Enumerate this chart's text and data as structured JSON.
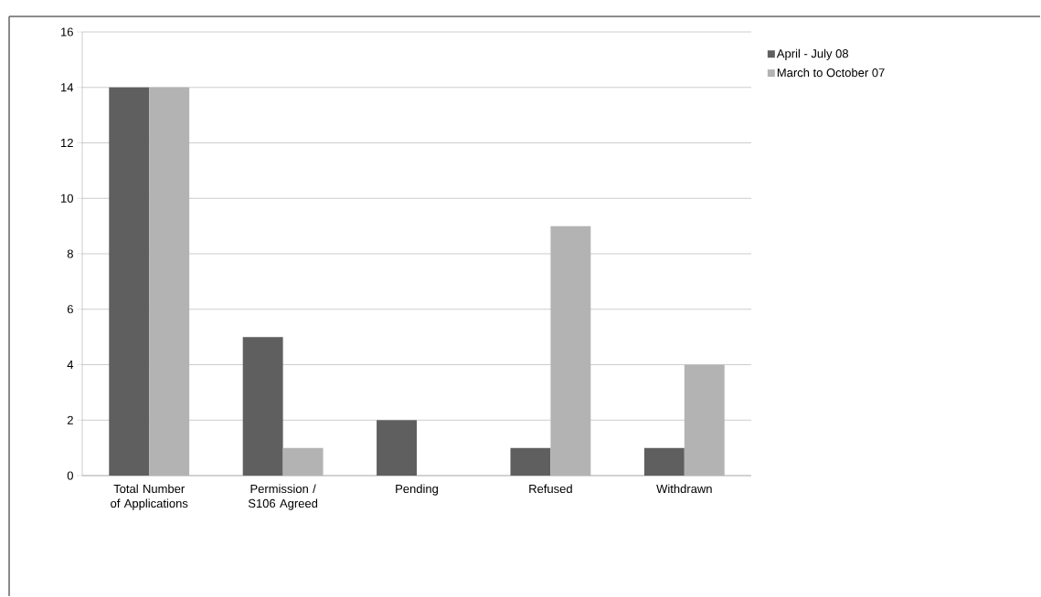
{
  "chart_data": {
    "type": "bar",
    "categories": [
      "Total Number of Applications",
      "Permission / S106 Agreed",
      "Pending",
      "Refused",
      "Withdrawn"
    ],
    "series": [
      {
        "name": "April - July 08",
        "color": "#5f5f5f",
        "values": [
          14,
          5,
          2,
          1,
          1
        ]
      },
      {
        "name": "March to October 07",
        "color": "#b3b3b3",
        "values": [
          14,
          1,
          0,
          9,
          4
        ]
      }
    ],
    "ylim": [
      0,
      16
    ],
    "yticks": [
      0,
      2,
      4,
      6,
      8,
      10,
      12,
      14,
      16
    ],
    "grid": "y",
    "legend": "top right"
  }
}
